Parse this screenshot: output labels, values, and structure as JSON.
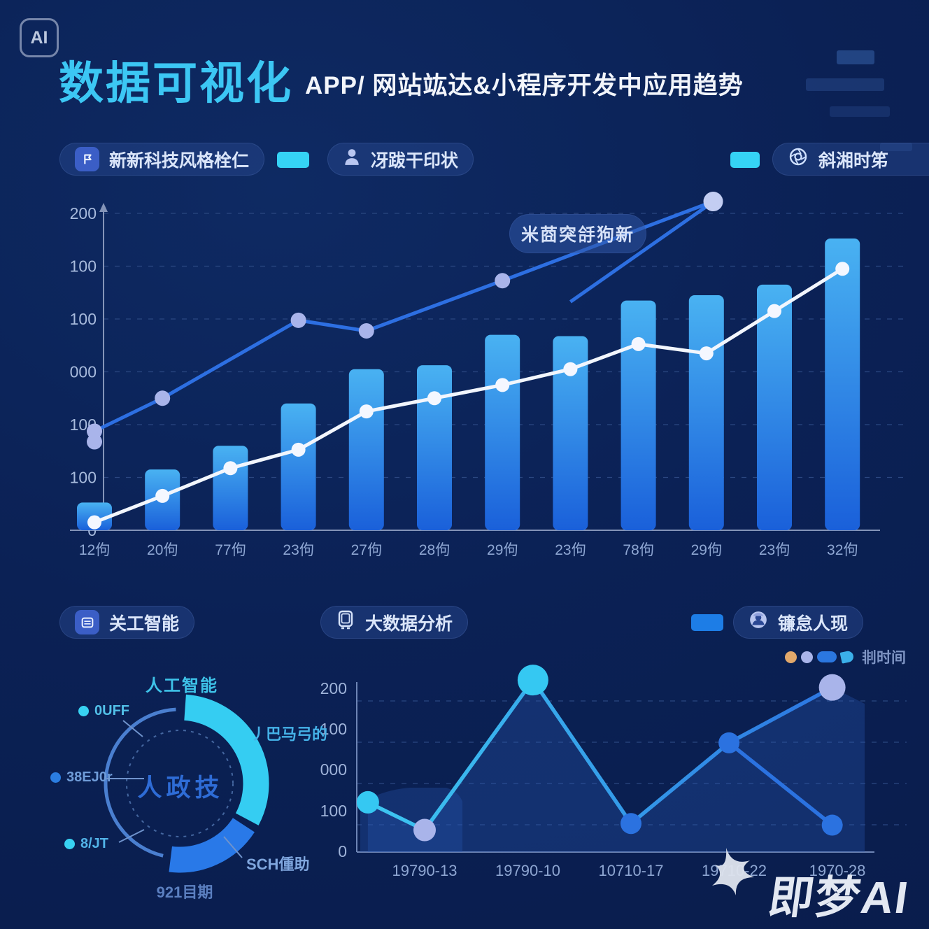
{
  "colors": {
    "cyan": "#35c8f2",
    "blue": "#2b72e0",
    "periwinkle": "#a9b4ea",
    "orange": "#e2a86b",
    "white_line": "#f2f6fd",
    "blue_line": "#2d6fe2",
    "bar_top": "#49b2f2",
    "bar_bottom": "#1a60da",
    "accent_cyan": "#35d3f5",
    "accent_blue": "#1d7de6"
  },
  "header": {
    "badge": "AI",
    "title": "数据可视化",
    "subtitle": "APP/ 网站竑达&小程序开发中应用趋势"
  },
  "legend_top": {
    "pill1": "新新科技风格栓仁",
    "pill2": "冴跋干印状",
    "pill3": "斜湘时笫"
  },
  "sections": {
    "ai_pill": "关工智能",
    "bigdata_pill": "大数据分析",
    "user_pill": "镰怠人现",
    "mini_legend_label": "剕时间"
  },
  "watermark": {
    "text": "即梦AI"
  },
  "chart_data": [
    {
      "type": "bar",
      "subtype": "bar-line-combo",
      "categories": [
        "12佝",
        "20佝",
        "77佝",
        "23佝",
        "27佝",
        "28佝",
        "29佝",
        "23佝",
        "78佝",
        "29佝",
        "23佝",
        "32佝"
      ],
      "ylim": [
        0,
        1200
      ],
      "ytick_labels_bottom_to_top": [
        "0",
        "100",
        "100",
        "000",
        "100",
        "100",
        "200"
      ],
      "grid": "dashed-horizontal",
      "annotation": "米莔突㧱狗新",
      "series": [
        {
          "name": "bars",
          "type": "bar",
          "values": [
            105,
            230,
            320,
            480,
            610,
            625,
            740,
            735,
            870,
            890,
            930,
            1105
          ]
        },
        {
          "name": "white-line",
          "type": "line",
          "values": [
            30,
            130,
            235,
            305,
            450,
            500,
            550,
            610,
            705,
            670,
            830,
            990
          ]
        },
        {
          "name": "blue-line",
          "type": "line",
          "x": [
            0,
            1,
            3,
            4,
            6,
            9.1
          ],
          "values": [
            375,
            500,
            795,
            755,
            945,
            1245
          ]
        },
        {
          "name": "blue-branch",
          "type": "line",
          "x": [
            7,
            9.05
          ],
          "values": [
            865,
            1235
          ]
        },
        {
          "name": "blue-extra-point",
          "type": "point",
          "x": [
            0
          ],
          "values": [
            335
          ]
        }
      ]
    },
    {
      "type": "pie",
      "subtype": "donut",
      "center_label": "人政技",
      "top_label": "人工智能",
      "right_label": "丿巴马弓的",
      "lowright_label": "SCH偅助",
      "bottom_label": "921目期",
      "segments": [
        {
          "label": "人工智能",
          "color": "#35cdf2",
          "start_deg": 4,
          "end_deg": 118,
          "thin": false
        },
        {
          "label": "SCH偅助",
          "color": "#2979e8",
          "start_deg": 123,
          "end_deg": 187,
          "thin": false
        },
        {
          "label": "",
          "color": "#4a7fd0",
          "start_deg": 193,
          "end_deg": 357,
          "thin": true
        }
      ],
      "side_labels": [
        {
          "text": "0UFF",
          "bullet": "#38d2f2",
          "color": "#52c0e8"
        },
        {
          "text": "38EJ0r",
          "bullet": "#2b7de0",
          "color": "#6f9cd8"
        },
        {
          "text": "8/JT",
          "bullet": "#38d2f2",
          "color": "#52b4e8"
        }
      ]
    },
    {
      "type": "line",
      "subtype": "area-line",
      "categories": [
        "19790-13",
        "19790-10",
        "10710-17",
        "19710-22",
        "1970-28"
      ],
      "ylim": [
        0,
        200
      ],
      "ytick_labels_bottom_to_top": [
        "0",
        "100",
        "000",
        "100",
        "200"
      ],
      "grid": "dashed-horizontal",
      "points": [
        {
          "x": -0.55,
          "value": 61,
          "color": "cyan",
          "r": 16
        },
        {
          "x": 0,
          "value": 27,
          "color": "periwinkle",
          "r": 16
        },
        {
          "x": 1.05,
          "value": 211,
          "color": "cyan",
          "r": 22
        },
        {
          "x": 2,
          "value": 35,
          "color": "blue",
          "r": 15
        },
        {
          "x": 2.95,
          "value": 134,
          "color": "blue",
          "r": 15
        },
        {
          "x": 3.95,
          "value": 202,
          "color": "periwinkle",
          "r": 19
        }
      ],
      "branch_point": {
        "x": 3.95,
        "value": 33,
        "color": "blue",
        "r": 15
      },
      "legend": {
        "dots": [
          "orange",
          "periwinkle",
          "blue",
          "cyan-drop"
        ],
        "label": "剕时间"
      }
    }
  ]
}
